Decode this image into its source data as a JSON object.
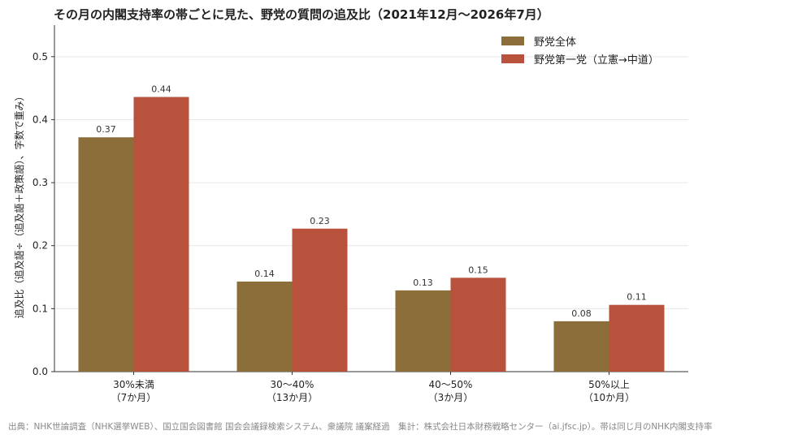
{
  "title": "その月の内閣支持率の帯ごとに見た、野党の質問の追及比（2021年12月〜2026年7月）",
  "source": "出典：NHK世論調査（NHK選挙WEB）、国立国会図書館 国会会議録検索システム、衆議院 議案経過　集計：株式会社日本財務戦略センター（ai.jfsc.jp）。帯は同じ月のNHK内閣支持率",
  "colors": {
    "series0": "#8b6e3a",
    "series1": "#b9523c"
  },
  "chart_data": {
    "type": "bar",
    "title": "その月の内閣支持率の帯ごとに見た、野党の質問の追及比（2021年12月〜2026年7月）",
    "ylabel": "追及比（追及語÷（追及語＋政策語）、字数で重み）",
    "xlabel": "",
    "ylim": [
      0,
      0.55
    ],
    "yticks": [
      "0.0",
      "0.1",
      "0.2",
      "0.3",
      "0.4",
      "0.5"
    ],
    "grid": true,
    "legend": "top-right",
    "categories": [
      {
        "line1": "30%未満",
        "line2": "（7か月）"
      },
      {
        "line1": "30〜40%",
        "line2": "（13か月）"
      },
      {
        "line1": "40〜50%",
        "line2": "（3か月）"
      },
      {
        "line1": "50%以上",
        "line2": "（10か月）"
      }
    ],
    "series": [
      {
        "name": "野党全体",
        "values": [
          0.372,
          0.143,
          0.129,
          0.08
        ],
        "labels": [
          "0.37",
          "0.14",
          "0.13",
          "0.08"
        ]
      },
      {
        "name": "野党第一党（立憲→中道）",
        "values": [
          0.436,
          0.227,
          0.149,
          0.106
        ],
        "labels": [
          "0.44",
          "0.23",
          "0.15",
          "0.11"
        ]
      }
    ]
  }
}
